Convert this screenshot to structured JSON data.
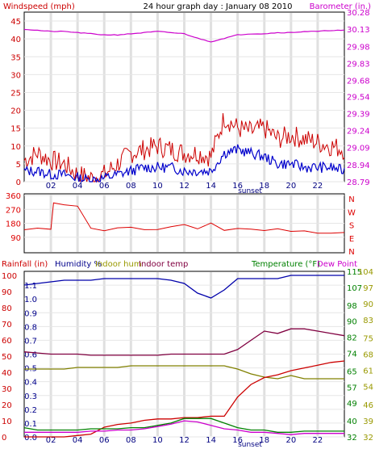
{
  "header": {
    "left": "Windspeed (mph)",
    "center": "24 hour graph day : January 08 2010",
    "right": "Barometer (in.)"
  },
  "panel3_legend": {
    "rainfall": "Rainfall (in)",
    "humidity": "Humidity %",
    "indoor_hum": "Indoor hum",
    "indoor_temp": "Indoor temp",
    "temperature": "Temperature (°F)",
    "dew_point": "Dew Point"
  },
  "sunset_label": "sunset",
  "colors": {
    "windspeed": "#cc0000",
    "windspeed_avg": "#0000cc",
    "barometer": "#cc00cc",
    "direction": "#dd0000",
    "humidity": "#0000aa",
    "indoor_hum": "#808000",
    "indoor_temp": "#800040",
    "rainfall": "#cc0000",
    "temperature": "#008000",
    "dew_point": "#cc00cc",
    "humidity_label": "#00008b",
    "indoor_hum_label": "#999900",
    "temperature_label": "#008000"
  },
  "chart_data": [
    {
      "type": "line",
      "x_unit": "hour",
      "x_ticks": [
        "02",
        "04",
        "06",
        "08",
        "10",
        "12",
        "14",
        "16",
        "18",
        "20",
        "22"
      ],
      "ylabel_left": "Windspeed (mph)",
      "ylabel_right": "Barometer (in.)",
      "y_left_ticks": [
        0,
        5,
        10,
        15,
        20,
        25,
        30,
        35,
        40,
        45
      ],
      "y_left_lim": [
        0,
        47.5
      ],
      "y_right_ticks": [
        28.79,
        28.94,
        29.09,
        29.24,
        29.39,
        29.54,
        29.68,
        29.83,
        29.98,
        30.13,
        30.28
      ],
      "y_right_lim": [
        28.79,
        30.28
      ],
      "series": [
        {
          "axis": "left",
          "style": "wind_gust",
          "x": [
            0,
            1,
            2,
            3,
            4,
            5,
            6,
            7,
            8,
            9,
            10,
            11,
            12,
            13,
            14,
            15,
            16,
            17,
            18,
            19,
            20,
            21,
            22,
            23,
            24
          ],
          "values": [
            6,
            8,
            6,
            5,
            2,
            1,
            2,
            5,
            8,
            9,
            10,
            9,
            8,
            8,
            7,
            18,
            15,
            14,
            15,
            12,
            13,
            12,
            11,
            10,
            9
          ]
        },
        {
          "axis": "left",
          "style": "wind_avg",
          "x": [
            0,
            1,
            2,
            3,
            4,
            5,
            6,
            7,
            8,
            9,
            10,
            11,
            12,
            13,
            14,
            15,
            16,
            17,
            18,
            19,
            20,
            21,
            22,
            23,
            24
          ],
          "values": [
            3,
            3,
            2,
            2,
            1,
            0.5,
            1,
            2,
            3,
            4,
            4,
            4,
            3,
            3,
            3,
            8,
            9,
            8,
            7,
            5,
            5,
            4,
            4,
            4,
            3
          ]
        },
        {
          "axis": "right",
          "style": "barometer",
          "x": [
            0,
            1,
            2,
            3,
            4,
            5,
            6,
            7,
            8,
            9,
            10,
            11,
            12,
            13,
            14,
            15,
            16,
            17,
            18,
            19,
            20,
            21,
            22,
            23,
            24
          ],
          "values": [
            30.13,
            30.12,
            30.11,
            30.11,
            30.1,
            30.09,
            30.08,
            30.08,
            30.09,
            30.1,
            30.11,
            30.1,
            30.09,
            30.05,
            30.02,
            30.05,
            30.08,
            30.09,
            30.09,
            30.1,
            30.1,
            30.11,
            30.11,
            30.12,
            30.12
          ]
        }
      ]
    },
    {
      "type": "line",
      "x_unit": "hour",
      "x_ticks": [
        "02",
        "04",
        "06",
        "08",
        "10",
        "12",
        "14",
        "16",
        "18",
        "20",
        "22"
      ],
      "y_left_ticks": [
        90,
        180,
        270,
        360
      ],
      "y_left_lim": [
        0,
        360
      ],
      "y_right_ticks": [
        "N",
        "W",
        "S",
        "E",
        "N"
      ],
      "series": [
        {
          "style": "wind_direction",
          "x": [
            0,
            1,
            2,
            2.2,
            3,
            4,
            5,
            6,
            7,
            8,
            9,
            10,
            11,
            12,
            13,
            14,
            15,
            16,
            17,
            18,
            19,
            20,
            21,
            22,
            23,
            24
          ],
          "values": [
            140,
            145,
            150,
            315,
            310,
            305,
            140,
            130,
            140,
            140,
            145,
            150,
            160,
            165,
            150,
            180,
            140,
            140,
            135,
            135,
            135,
            130,
            130,
            130,
            130,
            135
          ]
        }
      ]
    },
    {
      "type": "line",
      "x_unit": "hour",
      "x_ticks": [
        "02",
        "04",
        "06",
        "08",
        "10",
        "12",
        "14",
        "16",
        "18",
        "20",
        "22"
      ],
      "y_left_ticks": [
        0.0,
        0.1,
        0.2,
        0.3,
        0.4,
        0.5,
        0.6,
        0.7,
        0.8,
        0.9,
        1.0,
        1.1
      ],
      "y_left_lim": [
        0,
        1.2
      ],
      "y_left2_ticks": [
        0,
        10,
        20,
        30,
        40,
        50,
        60,
        70,
        80,
        90,
        100
      ],
      "y_left2_lim": [
        0,
        100
      ],
      "y_right_left_ticks": [
        32,
        40,
        49,
        57,
        65,
        74,
        82,
        90,
        98,
        107,
        115
      ],
      "y_right_left_lim": [
        32,
        115
      ],
      "y_right_right_ticks": [
        32,
        39,
        46,
        54,
        61,
        68,
        75,
        83,
        90,
        97,
        104
      ],
      "y_right_right_lim": [
        32,
        104
      ],
      "series": [
        {
          "style": "humidity",
          "axis": "pct",
          "x": [
            0,
            1,
            2,
            3,
            4,
            5,
            6,
            7,
            8,
            9,
            10,
            11,
            12,
            13,
            14,
            15,
            16,
            17,
            18,
            19,
            20,
            21,
            22,
            23,
            24
          ],
          "values": [
            94,
            95,
            96,
            97,
            97,
            97,
            98,
            98,
            98,
            98,
            98,
            97,
            95,
            89,
            86,
            91,
            98,
            98,
            98,
            98,
            100,
            100,
            100,
            100,
            100
          ]
        },
        {
          "style": "indoor_temp",
          "axis": "temp",
          "x": [
            0,
            1,
            2,
            3,
            4,
            5,
            6,
            7,
            8,
            9,
            10,
            11,
            12,
            13,
            14,
            15,
            16,
            17,
            18,
            19,
            20,
            21,
            22,
            23,
            24
          ],
          "values": [
            69,
            68.5,
            68,
            68,
            68,
            67.5,
            67.5,
            67.5,
            67.5,
            67.5,
            67.5,
            68,
            68,
            68,
            68,
            68,
            70,
            74,
            78,
            77,
            79,
            79,
            78,
            77,
            76
          ]
        },
        {
          "style": "indoor_hum",
          "axis": "pct",
          "x": [
            0,
            1,
            2,
            3,
            4,
            5,
            6,
            7,
            8,
            9,
            10,
            11,
            12,
            13,
            14,
            15,
            16,
            17,
            18,
            19,
            20,
            21,
            22,
            23,
            24
          ],
          "values": [
            42,
            42,
            42,
            42,
            43,
            43,
            43,
            43,
            44,
            44,
            44,
            44,
            44,
            44,
            44,
            44,
            42,
            39,
            37,
            36,
            38,
            36,
            36,
            36,
            36
          ]
        },
        {
          "style": "rainfall",
          "axis": "rain",
          "x": [
            0,
            1,
            2,
            3,
            4,
            5,
            6,
            7,
            8,
            9,
            10,
            11,
            12,
            13,
            14,
            15,
            16,
            17,
            18,
            19,
            20,
            21,
            22,
            23,
            24
          ],
          "values": [
            0,
            0,
            0,
            0,
            0.01,
            0.02,
            0.07,
            0.09,
            0.1,
            0.12,
            0.13,
            0.13,
            0.14,
            0.14,
            0.15,
            0.15,
            0.29,
            0.38,
            0.43,
            0.45,
            0.48,
            0.5,
            0.52,
            0.54,
            0.55
          ]
        },
        {
          "style": "temperature",
          "axis": "temp",
          "x": [
            0,
            1,
            2,
            3,
            4,
            5,
            6,
            7,
            8,
            9,
            10,
            11,
            12,
            13,
            14,
            15,
            16,
            17,
            18,
            19,
            20,
            21,
            22,
            23,
            24
          ],
          "values": [
            36,
            35,
            35,
            35,
            35,
            35.5,
            35.5,
            35.5,
            36,
            36,
            37,
            38,
            40,
            40,
            40,
            38,
            36,
            35,
            35,
            34,
            34,
            34.5,
            34.5,
            34.5,
            34.5
          ]
        },
        {
          "style": "dew_point",
          "axis": "temp",
          "x": [
            0,
            1,
            2,
            3,
            4,
            5,
            6,
            7,
            8,
            9,
            10,
            11,
            12,
            13,
            14,
            15,
            16,
            17,
            18,
            19,
            20,
            21,
            22,
            23,
            24
          ],
          "values": [
            34,
            34,
            34,
            34,
            34,
            34.5,
            34.5,
            35,
            35,
            35.5,
            36.5,
            37.5,
            39,
            38.5,
            37,
            35.5,
            35,
            34,
            34,
            33.5,
            33,
            33.5,
            33.5,
            33.5,
            33.5
          ]
        }
      ]
    }
  ]
}
